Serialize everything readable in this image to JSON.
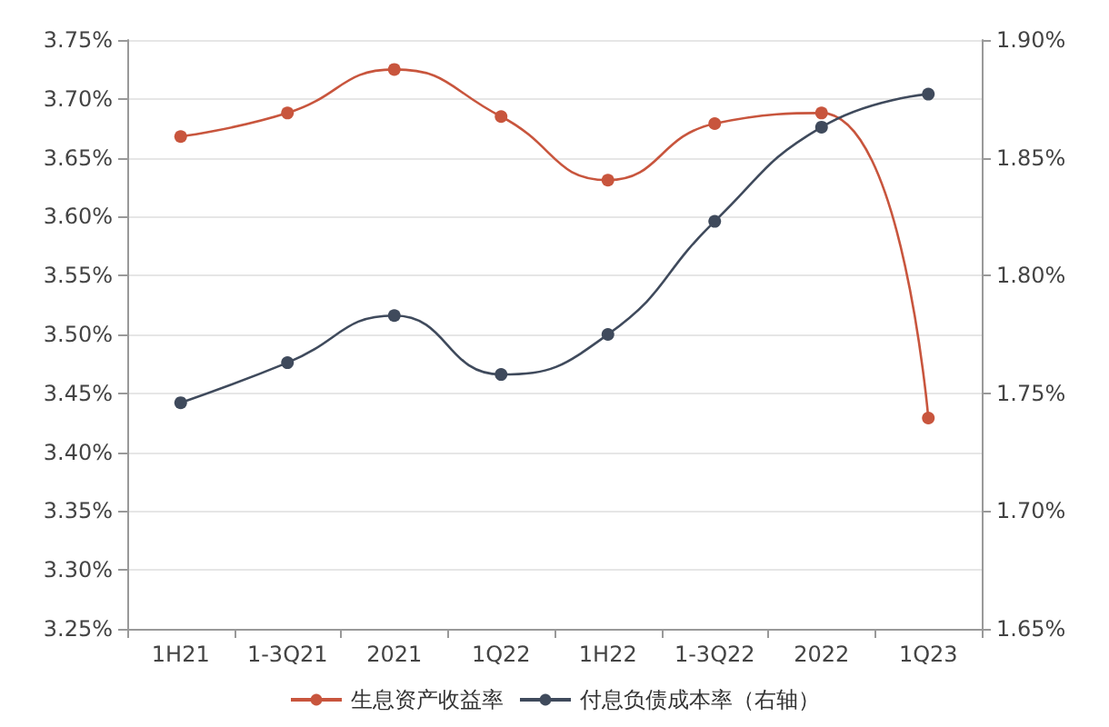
{
  "chart_data": {
    "type": "line",
    "categories": [
      "1H21",
      "1-3Q21",
      "2021",
      "1Q22",
      "1H22",
      "1-3Q22",
      "2022",
      "1Q23"
    ],
    "series": [
      {
        "name": "生息资产收益率",
        "color": "#c8553d",
        "values": [
          3.668,
          3.688,
          3.725,
          3.685,
          3.631,
          3.679,
          3.688,
          3.429
        ]
      },
      {
        "name": "付息负债成本率（右轴）",
        "color": "#3f4a5c",
        "axis": "y2",
        "values": [
          1.746,
          1.763,
          1.783,
          1.758,
          1.775,
          1.823,
          1.863,
          1.877
        ]
      }
    ],
    "ylim": [
      3.25,
      3.75
    ],
    "yticks": [
      {
        "value": 3.25,
        "label": "3.25%"
      },
      {
        "value": 3.3,
        "label": "3.30%"
      },
      {
        "value": 3.35,
        "label": "3.35%"
      },
      {
        "value": 3.4,
        "label": "3.40%"
      },
      {
        "value": 3.45,
        "label": "3.45%"
      },
      {
        "value": 3.5,
        "label": "3.50%"
      },
      {
        "value": 3.55,
        "label": "3.55%"
      },
      {
        "value": 3.6,
        "label": "3.60%"
      },
      {
        "value": 3.65,
        "label": "3.65%"
      },
      {
        "value": 3.7,
        "label": "3.70%"
      },
      {
        "value": 3.75,
        "label": "3.75%"
      }
    ],
    "y2lim": [
      1.65,
      1.9
    ],
    "y2ticks": [
      {
        "value": 1.65,
        "label": "1.65%"
      },
      {
        "value": 1.7,
        "label": "1.70%"
      },
      {
        "value": 1.75,
        "label": "1.75%"
      },
      {
        "value": 1.8,
        "label": "1.80%"
      },
      {
        "value": 1.85,
        "label": "1.85%"
      },
      {
        "value": 1.9,
        "label": "1.90%"
      }
    ],
    "grid": "y",
    "legend": "bottom",
    "marker": "circle",
    "line_style": "solid"
  }
}
